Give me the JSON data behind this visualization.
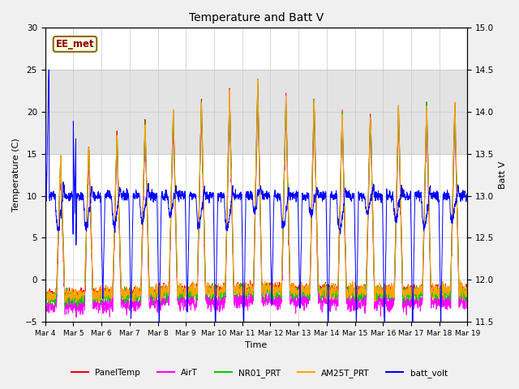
{
  "title": "Temperature and Batt V",
  "xlabel": "Time",
  "ylabel_left": "Temperature (C)",
  "ylabel_right": "Batt V",
  "ylim_left": [
    -5,
    30
  ],
  "ylim_right": [
    11.5,
    15.0
  ],
  "xtick_labels": [
    "Mar 4",
    "Mar 5",
    "Mar 6",
    "Mar 7",
    "Mar 8",
    "Mar 9",
    "Mar 10",
    "Mar 11",
    "Mar 12",
    "Mar 13",
    "Mar 14",
    "Mar 15",
    "Mar 16",
    "Mar 17",
    "Mar 18",
    "Mar 19"
  ],
  "shaded_region": [
    15,
    25
  ],
  "annotation_text": "EE_met",
  "annotation_color": "#8B0000",
  "annotation_bg": "#FFFFE0",
  "annotation_border": "#8B6914",
  "colors": {
    "PanelTemp": "#FF0000",
    "AirT": "#FF00FF",
    "NR01_PRT": "#00CC00",
    "AM25T_PRT": "#FFA500",
    "batt_volt": "#0000FF"
  },
  "legend_labels": [
    "PanelTemp",
    "AirT",
    "NR01_PRT",
    "AM25T_PRT",
    "batt_volt"
  ],
  "background_color": "#F0F0F0",
  "plot_bg": "#FFFFFF",
  "grid_color": "#C8C8C8"
}
